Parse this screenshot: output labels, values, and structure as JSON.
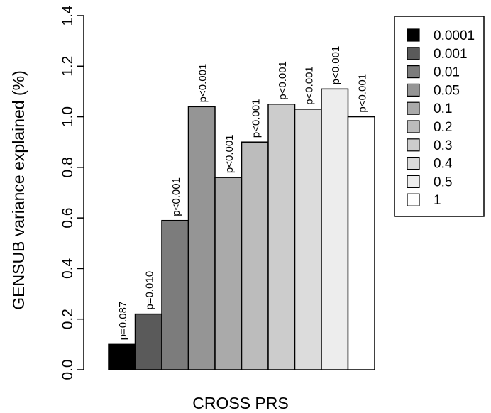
{
  "chart_data": {
    "type": "bar",
    "title": "",
    "xlabel": "CROSS PRS",
    "ylabel": "GENSUB variance explained (%)",
    "ylim": [
      0,
      1.4
    ],
    "yticks": [
      "0.0",
      "0.2",
      "0.4",
      "0.6",
      "0.8",
      "1.0",
      "1.2",
      "1.4"
    ],
    "grid": false,
    "legend_position": "top-right",
    "categories": [
      "0.0001",
      "0.001",
      "0.01",
      "0.05",
      "0.1",
      "0.2",
      "0.3",
      "0.4",
      "0.5",
      "1"
    ],
    "values": [
      0.1,
      0.22,
      0.59,
      1.04,
      0.76,
      0.9,
      1.05,
      1.03,
      1.11,
      1.0
    ],
    "pvalue_labels": [
      "p=0.087",
      "p=0.010",
      "p<0.001",
      "p<0.001",
      "p<0.001",
      "p<0.001",
      "p<0.001",
      "p<0.001",
      "p<0.001",
      "p<0.001"
    ],
    "colors": [
      "#000000",
      "#5a5a5a",
      "#7c7c7c",
      "#959595",
      "#aaaaaa",
      "#bcbcbc",
      "#cccccc",
      "#dcdcdc",
      "#ededed",
      "#ffffff"
    ]
  }
}
